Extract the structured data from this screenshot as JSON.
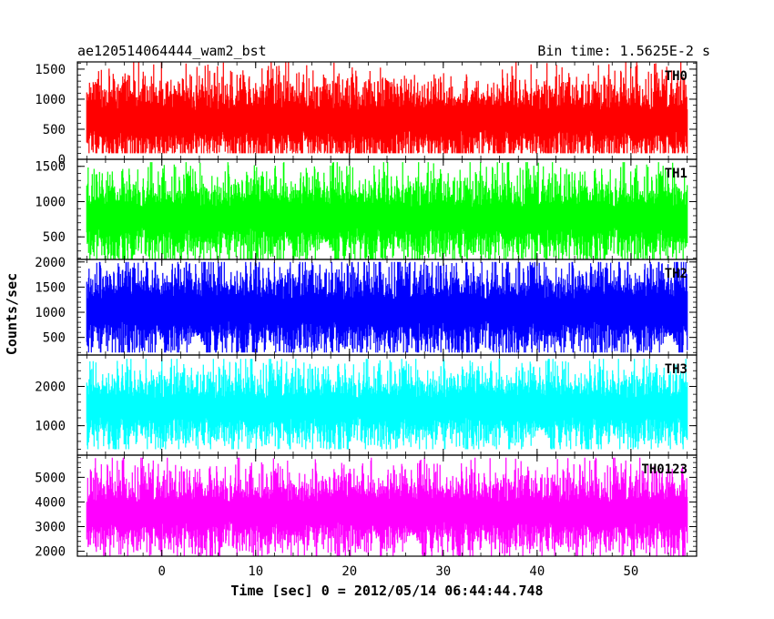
{
  "header": {
    "left": "ae120514064444_wam2_bst",
    "right": "Bin time: 1.5625E-2 s"
  },
  "chart_data": {
    "type": "line",
    "xlabel": "Time [sec] 0 = 2012/05/14 06:44:44.748",
    "ylabel": "Counts/sec",
    "xlim": [
      -9,
      57
    ],
    "x_range_data": [
      -8,
      56
    ],
    "x_ticks": [
      0,
      10,
      20,
      30,
      40,
      50
    ],
    "grid": false,
    "panels": [
      {
        "name": "TH0",
        "color": "#ff0000",
        "ylim": [
          0,
          1620
        ],
        "yticks": [
          0,
          500,
          1000,
          1500
        ],
        "center": 650,
        "spread": 330,
        "min": 100,
        "max": 1620
      },
      {
        "name": "TH1",
        "color": "#00ff00",
        "ylim": [
          180,
          1600
        ],
        "yticks": [
          500,
          1000,
          1500
        ],
        "center": 770,
        "spread": 290,
        "min": 180,
        "max": 1560
      },
      {
        "name": "TH2",
        "color": "#0000ff",
        "ylim": [
          150,
          2050
        ],
        "yticks": [
          500,
          1000,
          1500,
          2000
        ],
        "center": 1030,
        "spread": 420,
        "min": 200,
        "max": 2000
      },
      {
        "name": "TH3",
        "color": "#00ffff",
        "ylim": [
          250,
          2800
        ],
        "yticks": [
          1000,
          2000
        ],
        "center": 1450,
        "spread": 470,
        "min": 400,
        "max": 2700
      },
      {
        "name": "TH0123",
        "color": "#ff00ff",
        "ylim": [
          1800,
          5900
        ],
        "yticks": [
          2000,
          3000,
          4000,
          5000
        ],
        "center": 3580,
        "spread": 780,
        "min": 1800,
        "max": 5800
      }
    ]
  }
}
